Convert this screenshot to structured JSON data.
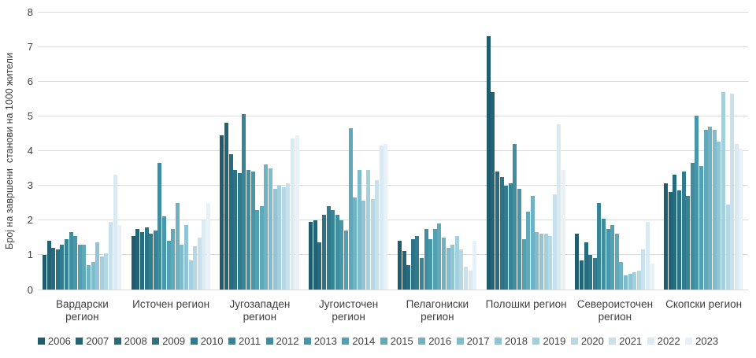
{
  "chart_data": {
    "type": "bar",
    "title": "",
    "xlabel": "",
    "ylabel": "Број на завршени  станови на 1000 жители",
    "ylim": [
      0,
      8
    ],
    "yticks": [
      0,
      1,
      2,
      3,
      4,
      5,
      6,
      7,
      8
    ],
    "grid": true,
    "legend_position": "bottom",
    "categories": [
      "Вардарски регион",
      "Источен регион",
      "Југозападен регион",
      "Југоисточен регион",
      "Пелагониски регион",
      "Полошки регион",
      "Североисточен регион",
      "Скопски регион"
    ],
    "category_lines": [
      [
        "Вардарски",
        "регион"
      ],
      [
        "Источен регион"
      ],
      [
        "Југозападен",
        "регион"
      ],
      [
        "Југоисточен",
        "регион"
      ],
      [
        "Пелагониски",
        "регион"
      ],
      [
        "Полошки регион"
      ],
      [
        "Североисточен",
        "регион"
      ],
      [
        "Скопски регион"
      ]
    ],
    "series": [
      {
        "name": "2006",
        "color": "#1f5c70",
        "values": [
          1.0,
          1.55,
          4.45,
          1.95,
          1.4,
          7.3,
          1.6,
          3.05
        ]
      },
      {
        "name": "2007",
        "color": "#226476",
        "values": [
          1.4,
          1.75,
          4.8,
          2.0,
          1.1,
          5.7,
          0.85,
          2.8
        ]
      },
      {
        "name": "2008",
        "color": "#276b7e",
        "values": [
          1.2,
          1.65,
          3.9,
          1.35,
          0.7,
          3.4,
          1.35,
          3.3
        ]
      },
      {
        "name": "2009",
        "color": "#2c7386",
        "values": [
          1.15,
          1.8,
          3.45,
          2.15,
          1.45,
          3.25,
          1.0,
          2.85
        ]
      },
      {
        "name": "2010",
        "color": "#317b8e",
        "values": [
          1.3,
          1.6,
          3.35,
          2.4,
          1.55,
          3.0,
          0.9,
          3.4
        ]
      },
      {
        "name": "2011",
        "color": "#388497",
        "values": [
          1.45,
          1.7,
          5.05,
          2.3,
          0.9,
          3.05,
          2.5,
          2.7
        ]
      },
      {
        "name": "2012",
        "color": "#408da0",
        "values": [
          1.65,
          3.65,
          3.45,
          2.15,
          1.75,
          4.2,
          2.05,
          3.65
        ]
      },
      {
        "name": "2013",
        "color": "#4896aa",
        "values": [
          1.55,
          2.1,
          3.4,
          2.0,
          1.45,
          2.9,
          1.75,
          5.0
        ]
      },
      {
        "name": "2014",
        "color": "#52a0b2",
        "values": [
          1.3,
          1.4,
          2.3,
          1.7,
          1.75,
          1.45,
          1.85,
          3.55
        ]
      },
      {
        "name": "2015",
        "color": "#5fa9bb",
        "values": [
          1.3,
          1.75,
          2.4,
          4.65,
          1.9,
          2.25,
          1.6,
          4.6
        ]
      },
      {
        "name": "2016",
        "color": "#6eb2c4",
        "values": [
          0.7,
          2.5,
          3.6,
          2.65,
          1.5,
          2.7,
          0.8,
          4.7
        ]
      },
      {
        "name": "2017",
        "color": "#7fbccd",
        "values": [
          0.8,
          1.3,
          3.5,
          3.45,
          1.2,
          1.65,
          0.4,
          4.6
        ]
      },
      {
        "name": "2018",
        "color": "#91c5d5",
        "values": [
          1.35,
          1.85,
          2.9,
          2.55,
          1.3,
          1.6,
          0.45,
          4.25
        ]
      },
      {
        "name": "2019",
        "color": "#a4cfdd",
        "values": [
          0.95,
          0.85,
          3.0,
          3.45,
          1.55,
          1.6,
          0.5,
          5.7
        ]
      },
      {
        "name": "2020",
        "color": "#b6d8e5",
        "values": [
          1.05,
          1.25,
          2.95,
          2.6,
          1.15,
          1.55,
          0.55,
          2.45
        ]
      },
      {
        "name": "2021",
        "color": "#c8e1ec",
        "values": [
          1.95,
          1.5,
          3.05,
          3.15,
          0.65,
          2.75,
          1.15,
          5.65
        ]
      },
      {
        "name": "2022",
        "color": "#d9eaf2",
        "values": [
          3.3,
          2.0,
          4.35,
          4.15,
          0.55,
          4.75,
          1.95,
          4.2
        ]
      },
      {
        "name": "2023",
        "color": "#e8f1f7",
        "values": [
          1.85,
          2.5,
          4.45,
          4.2,
          1.4,
          3.45,
          0.75,
          4.05
        ]
      }
    ]
  },
  "style": {
    "gridline_color": "#d9d9d9",
    "text_color": "#404040",
    "background": "#ffffff"
  }
}
